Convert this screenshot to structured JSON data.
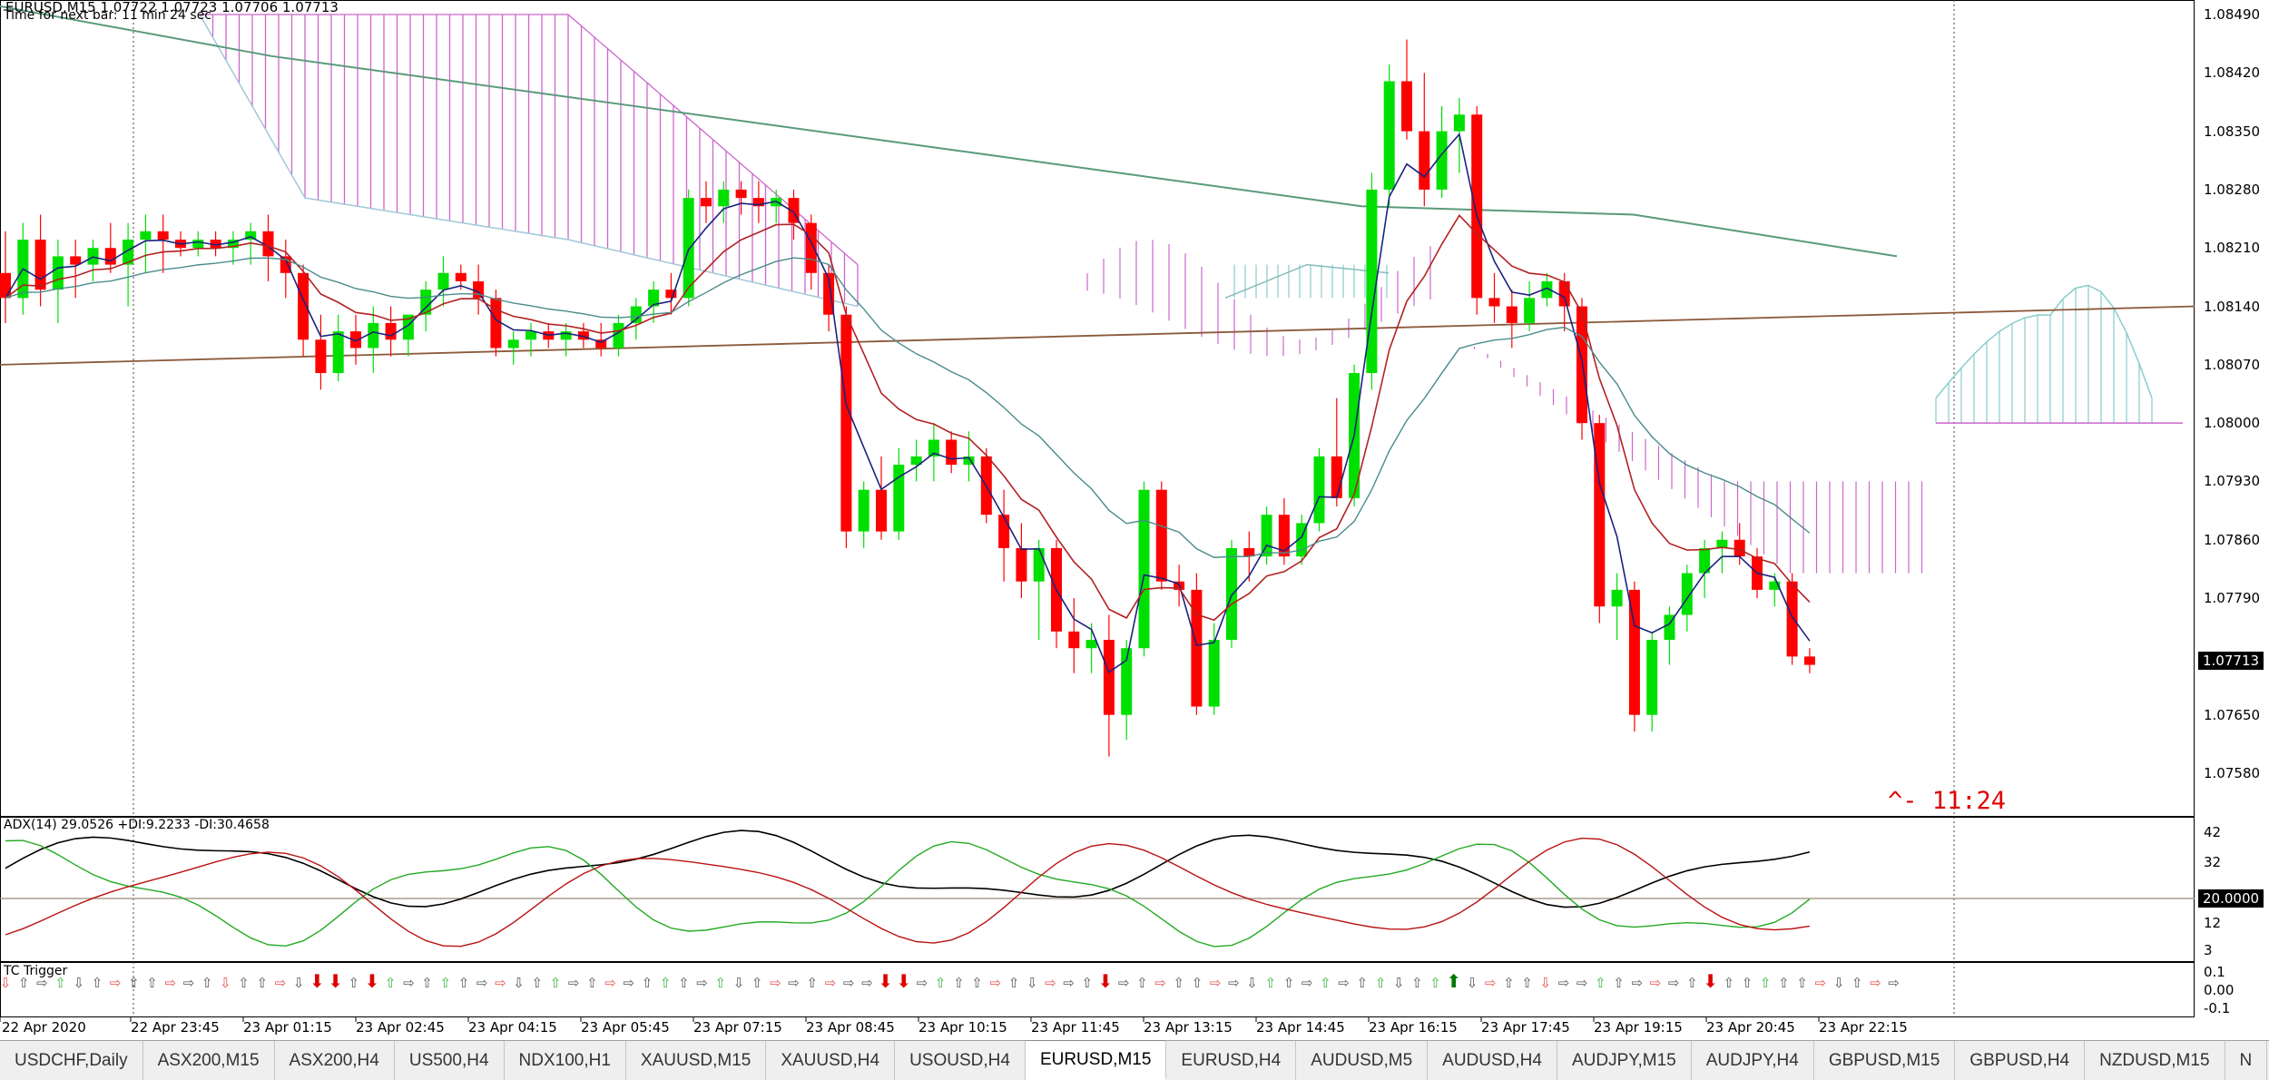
{
  "header": {
    "symbol_line": "EURUSD,M15  1.07722 1.07723 1.07706 1.07713",
    "timer_line": "Time for next bar: 11 min 24 sec"
  },
  "price_axis": {
    "labels": [
      "1.08490",
      "1.08420",
      "1.08350",
      "1.08280",
      "1.08210",
      "1.08140",
      "1.08070",
      "1.08000",
      "1.07930",
      "1.07860",
      "1.07790",
      "1.07650",
      "1.07580"
    ],
    "current_price": "1.07713"
  },
  "countdown": "^- 11:24",
  "adx_panel": {
    "label": "ADX(14) 29.0526 +DI:9.2233 -DI:30.4658",
    "levels": [
      "42",
      "32",
      "12",
      "3"
    ],
    "threshold": "20.0000"
  },
  "tc_panel": {
    "label": "TC Trigger",
    "levels": [
      "0.1",
      "0.00",
      "-0.1"
    ]
  },
  "time_axis": [
    "22 Apr 2020",
    "22 Apr 23:45",
    "23 Apr 01:15",
    "23 Apr 02:45",
    "23 Apr 04:15",
    "23 Apr 05:45",
    "23 Apr 07:15",
    "23 Apr 08:45",
    "23 Apr 10:15",
    "23 Apr 11:45",
    "23 Apr 13:15",
    "23 Apr 14:45",
    "23 Apr 16:15",
    "23 Apr 17:45",
    "23 Apr 19:15",
    "23 Apr 20:45",
    "23 Apr 22:15"
  ],
  "tabs": [
    {
      "label": "USDCHF,Daily",
      "active": false
    },
    {
      "label": "ASX200,M15",
      "active": false
    },
    {
      "label": "ASX200,H4",
      "active": false
    },
    {
      "label": "US500,H4",
      "active": false
    },
    {
      "label": "NDX100,H1",
      "active": false
    },
    {
      "label": "XAUUSD,M15",
      "active": false
    },
    {
      "label": "XAUUSD,H4",
      "active": false
    },
    {
      "label": "USOUSD,H4",
      "active": false
    },
    {
      "label": "EURUSD,M15",
      "active": true
    },
    {
      "label": "EURUSD,H4",
      "active": false
    },
    {
      "label": "AUDUSD,M5",
      "active": false
    },
    {
      "label": "AUDUSD,H4",
      "active": false
    },
    {
      "label": "AUDJPY,M15",
      "active": false
    },
    {
      "label": "AUDJPY,H4",
      "active": false
    },
    {
      "label": "GBPUSD,M15",
      "active": false
    },
    {
      "label": "GBPUSD,H4",
      "active": false
    },
    {
      "label": "NZDUSD,M15",
      "active": false
    },
    {
      "label": "N",
      "active": false
    }
  ],
  "colors": {
    "bull": "#00e000",
    "bear": "#ff0000",
    "cloud_bear": "#cc66cc",
    "cloud_bull": "#88cccc",
    "adx": "#000000",
    "plus_di": "#22aa22",
    "minus_di": "#bb1111"
  },
  "chart_data": {
    "type": "candlestick",
    "symbol": "EURUSD",
    "timeframe": "M15",
    "ohlc_of_last_bar": [
      1.07722,
      1.07723,
      1.07706,
      1.07713
    ],
    "y_range": [
      1.0754,
      1.0852
    ],
    "candles": [
      [
        1.0818,
        1.0823,
        1.0812,
        1.0815
      ],
      [
        1.0815,
        1.0824,
        1.0813,
        1.0822
      ],
      [
        1.0822,
        1.0825,
        1.0814,
        1.0816
      ],
      [
        1.0816,
        1.0822,
        1.0812,
        1.082
      ],
      [
        1.082,
        1.0822,
        1.0815,
        1.0819
      ],
      [
        1.0819,
        1.0822,
        1.0817,
        1.0821
      ],
      [
        1.0821,
        1.0824,
        1.0818,
        1.0819
      ],
      [
        1.0819,
        1.0824,
        1.0814,
        1.0822
      ],
      [
        1.0822,
        1.0825,
        1.0818,
        1.0823
      ],
      [
        1.0823,
        1.0825,
        1.0818,
        1.0822
      ],
      [
        1.0822,
        1.0823,
        1.082,
        1.0821
      ],
      [
        1.0821,
        1.0823,
        1.082,
        1.0822
      ],
      [
        1.0822,
        1.0823,
        1.082,
        1.0821
      ],
      [
        1.0821,
        1.0823,
        1.0819,
        1.0822
      ],
      [
        1.0822,
        1.0824,
        1.0819,
        1.0823
      ],
      [
        1.0823,
        1.0825,
        1.0817,
        1.082
      ],
      [
        1.082,
        1.0822,
        1.0815,
        1.0818
      ],
      [
        1.0818,
        1.0819,
        1.0808,
        1.081
      ],
      [
        1.081,
        1.0813,
        1.0804,
        1.0806
      ],
      [
        1.0806,
        1.0813,
        1.0805,
        1.0811
      ],
      [
        1.0811,
        1.0813,
        1.0807,
        1.0809
      ],
      [
        1.0809,
        1.0814,
        1.0806,
        1.0812
      ],
      [
        1.0812,
        1.0814,
        1.0808,
        1.081
      ],
      [
        1.081,
        1.0813,
        1.0808,
        1.0813
      ],
      [
        1.0813,
        1.0817,
        1.0811,
        1.0816
      ],
      [
        1.0816,
        1.082,
        1.0814,
        1.0818
      ],
      [
        1.0818,
        1.0819,
        1.0816,
        1.0817
      ],
      [
        1.0817,
        1.0819,
        1.0813,
        1.0815
      ],
      [
        1.0815,
        1.0816,
        1.0808,
        1.0809
      ],
      [
        1.0809,
        1.0811,
        1.0807,
        1.081
      ],
      [
        1.081,
        1.0812,
        1.0808,
        1.0811
      ],
      [
        1.0811,
        1.0812,
        1.0809,
        1.081
      ],
      [
        1.081,
        1.0812,
        1.0808,
        1.0811
      ],
      [
        1.0811,
        1.0812,
        1.0809,
        1.081
      ],
      [
        1.081,
        1.0812,
        1.0808,
        1.0809
      ],
      [
        1.0809,
        1.0813,
        1.0808,
        1.0812
      ],
      [
        1.0812,
        1.0815,
        1.081,
        1.0814
      ],
      [
        1.0814,
        1.0817,
        1.0812,
        1.0816
      ],
      [
        1.0816,
        1.0818,
        1.0813,
        1.0815
      ],
      [
        1.0815,
        1.0828,
        1.0814,
        1.0827
      ],
      [
        1.0827,
        1.0829,
        1.0824,
        1.0826
      ],
      [
        1.0826,
        1.0829,
        1.0824,
        1.0828
      ],
      [
        1.0828,
        1.0829,
        1.0825,
        1.0827
      ],
      [
        1.0827,
        1.0829,
        1.0824,
        1.0826
      ],
      [
        1.0826,
        1.0828,
        1.0824,
        1.0827
      ],
      [
        1.0827,
        1.0828,
        1.0822,
        1.0824
      ],
      [
        1.0824,
        1.0825,
        1.0816,
        1.0818
      ],
      [
        1.0818,
        1.0819,
        1.0811,
        1.0813
      ],
      [
        1.0813,
        1.0814,
        1.0785,
        1.0787
      ],
      [
        1.0787,
        1.0793,
        1.0785,
        1.0792
      ],
      [
        1.0792,
        1.0796,
        1.0786,
        1.0787
      ],
      [
        1.0787,
        1.0797,
        1.0786,
        1.0795
      ],
      [
        1.0795,
        1.0798,
        1.0793,
        1.0796
      ],
      [
        1.0796,
        1.08,
        1.0793,
        1.0798
      ],
      [
        1.0798,
        1.0799,
        1.0794,
        1.0795
      ],
      [
        1.0795,
        1.0799,
        1.0793,
        1.0796
      ],
      [
        1.0796,
        1.0797,
        1.0788,
        1.0789
      ],
      [
        1.0789,
        1.0792,
        1.0781,
        1.0785
      ],
      [
        1.0785,
        1.0788,
        1.0779,
        1.0781
      ],
      [
        1.0781,
        1.0786,
        1.0774,
        1.0785
      ],
      [
        1.0785,
        1.0786,
        1.0773,
        1.0775
      ],
      [
        1.0775,
        1.0779,
        1.077,
        1.0773
      ],
      [
        1.0773,
        1.0776,
        1.077,
        1.0774
      ],
      [
        1.0774,
        1.0777,
        1.076,
        1.0765
      ],
      [
        1.0765,
        1.0774,
        1.0762,
        1.0773
      ],
      [
        1.0773,
        1.0793,
        1.0772,
        1.0792
      ],
      [
        1.0792,
        1.0793,
        1.078,
        1.0781
      ],
      [
        1.0781,
        1.0783,
        1.0778,
        1.078
      ],
      [
        1.078,
        1.0782,
        1.0765,
        1.0766
      ],
      [
        1.0766,
        1.0776,
        1.0765,
        1.0774
      ],
      [
        1.0774,
        1.0786,
        1.0773,
        1.0785
      ],
      [
        1.0785,
        1.0787,
        1.0781,
        1.0784
      ],
      [
        1.0784,
        1.079,
        1.0783,
        1.0789
      ],
      [
        1.0789,
        1.0791,
        1.0783,
        1.0784
      ],
      [
        1.0784,
        1.0789,
        1.0783,
        1.0788
      ],
      [
        1.0788,
        1.0797,
        1.0787,
        1.0796
      ],
      [
        1.0796,
        1.0803,
        1.079,
        1.0791
      ],
      [
        1.0791,
        1.0807,
        1.079,
        1.0806
      ],
      [
        1.0806,
        1.083,
        1.0804,
        1.0828
      ],
      [
        1.0828,
        1.0843,
        1.0826,
        1.0841
      ],
      [
        1.0841,
        1.0846,
        1.0834,
        1.0835
      ],
      [
        1.0835,
        1.0842,
        1.0826,
        1.0828
      ],
      [
        1.0828,
        1.0838,
        1.0827,
        1.0835
      ],
      [
        1.0835,
        1.0839,
        1.083,
        1.0837
      ],
      [
        1.0837,
        1.0838,
        1.0813,
        1.0815
      ],
      [
        1.0815,
        1.0818,
        1.0812,
        1.0814
      ],
      [
        1.0814,
        1.0816,
        1.0809,
        1.0812
      ],
      [
        1.0812,
        1.0817,
        1.0811,
        1.0815
      ],
      [
        1.0815,
        1.0818,
        1.0814,
        1.0817
      ],
      [
        1.0817,
        1.0818,
        1.0811,
        1.0814
      ],
      [
        1.0814,
        1.0815,
        1.0798,
        1.08
      ],
      [
        1.08,
        1.0801,
        1.0776,
        1.0778
      ],
      [
        1.0778,
        1.0782,
        1.0774,
        1.078
      ],
      [
        1.078,
        1.0781,
        1.0763,
        1.0765
      ],
      [
        1.0765,
        1.0775,
        1.0763,
        1.0774
      ],
      [
        1.0774,
        1.0778,
        1.0771,
        1.0777
      ],
      [
        1.0777,
        1.0783,
        1.0775,
        1.0782
      ],
      [
        1.0782,
        1.0786,
        1.0779,
        1.0785
      ],
      [
        1.0785,
        1.0787,
        1.0782,
        1.0786
      ],
      [
        1.0786,
        1.0788,
        1.0783,
        1.0784
      ],
      [
        1.0784,
        1.0785,
        1.0779,
        1.078
      ],
      [
        1.078,
        1.0782,
        1.0778,
        1.0781
      ],
      [
        1.0781,
        1.0782,
        1.0771,
        1.0772
      ],
      [
        1.0772,
        1.0773,
        1.077,
        1.0771
      ]
    ],
    "indicators": [
      "Ichimoku cloud",
      "moving averages",
      "ADX(14)",
      "TC Trigger"
    ]
  }
}
